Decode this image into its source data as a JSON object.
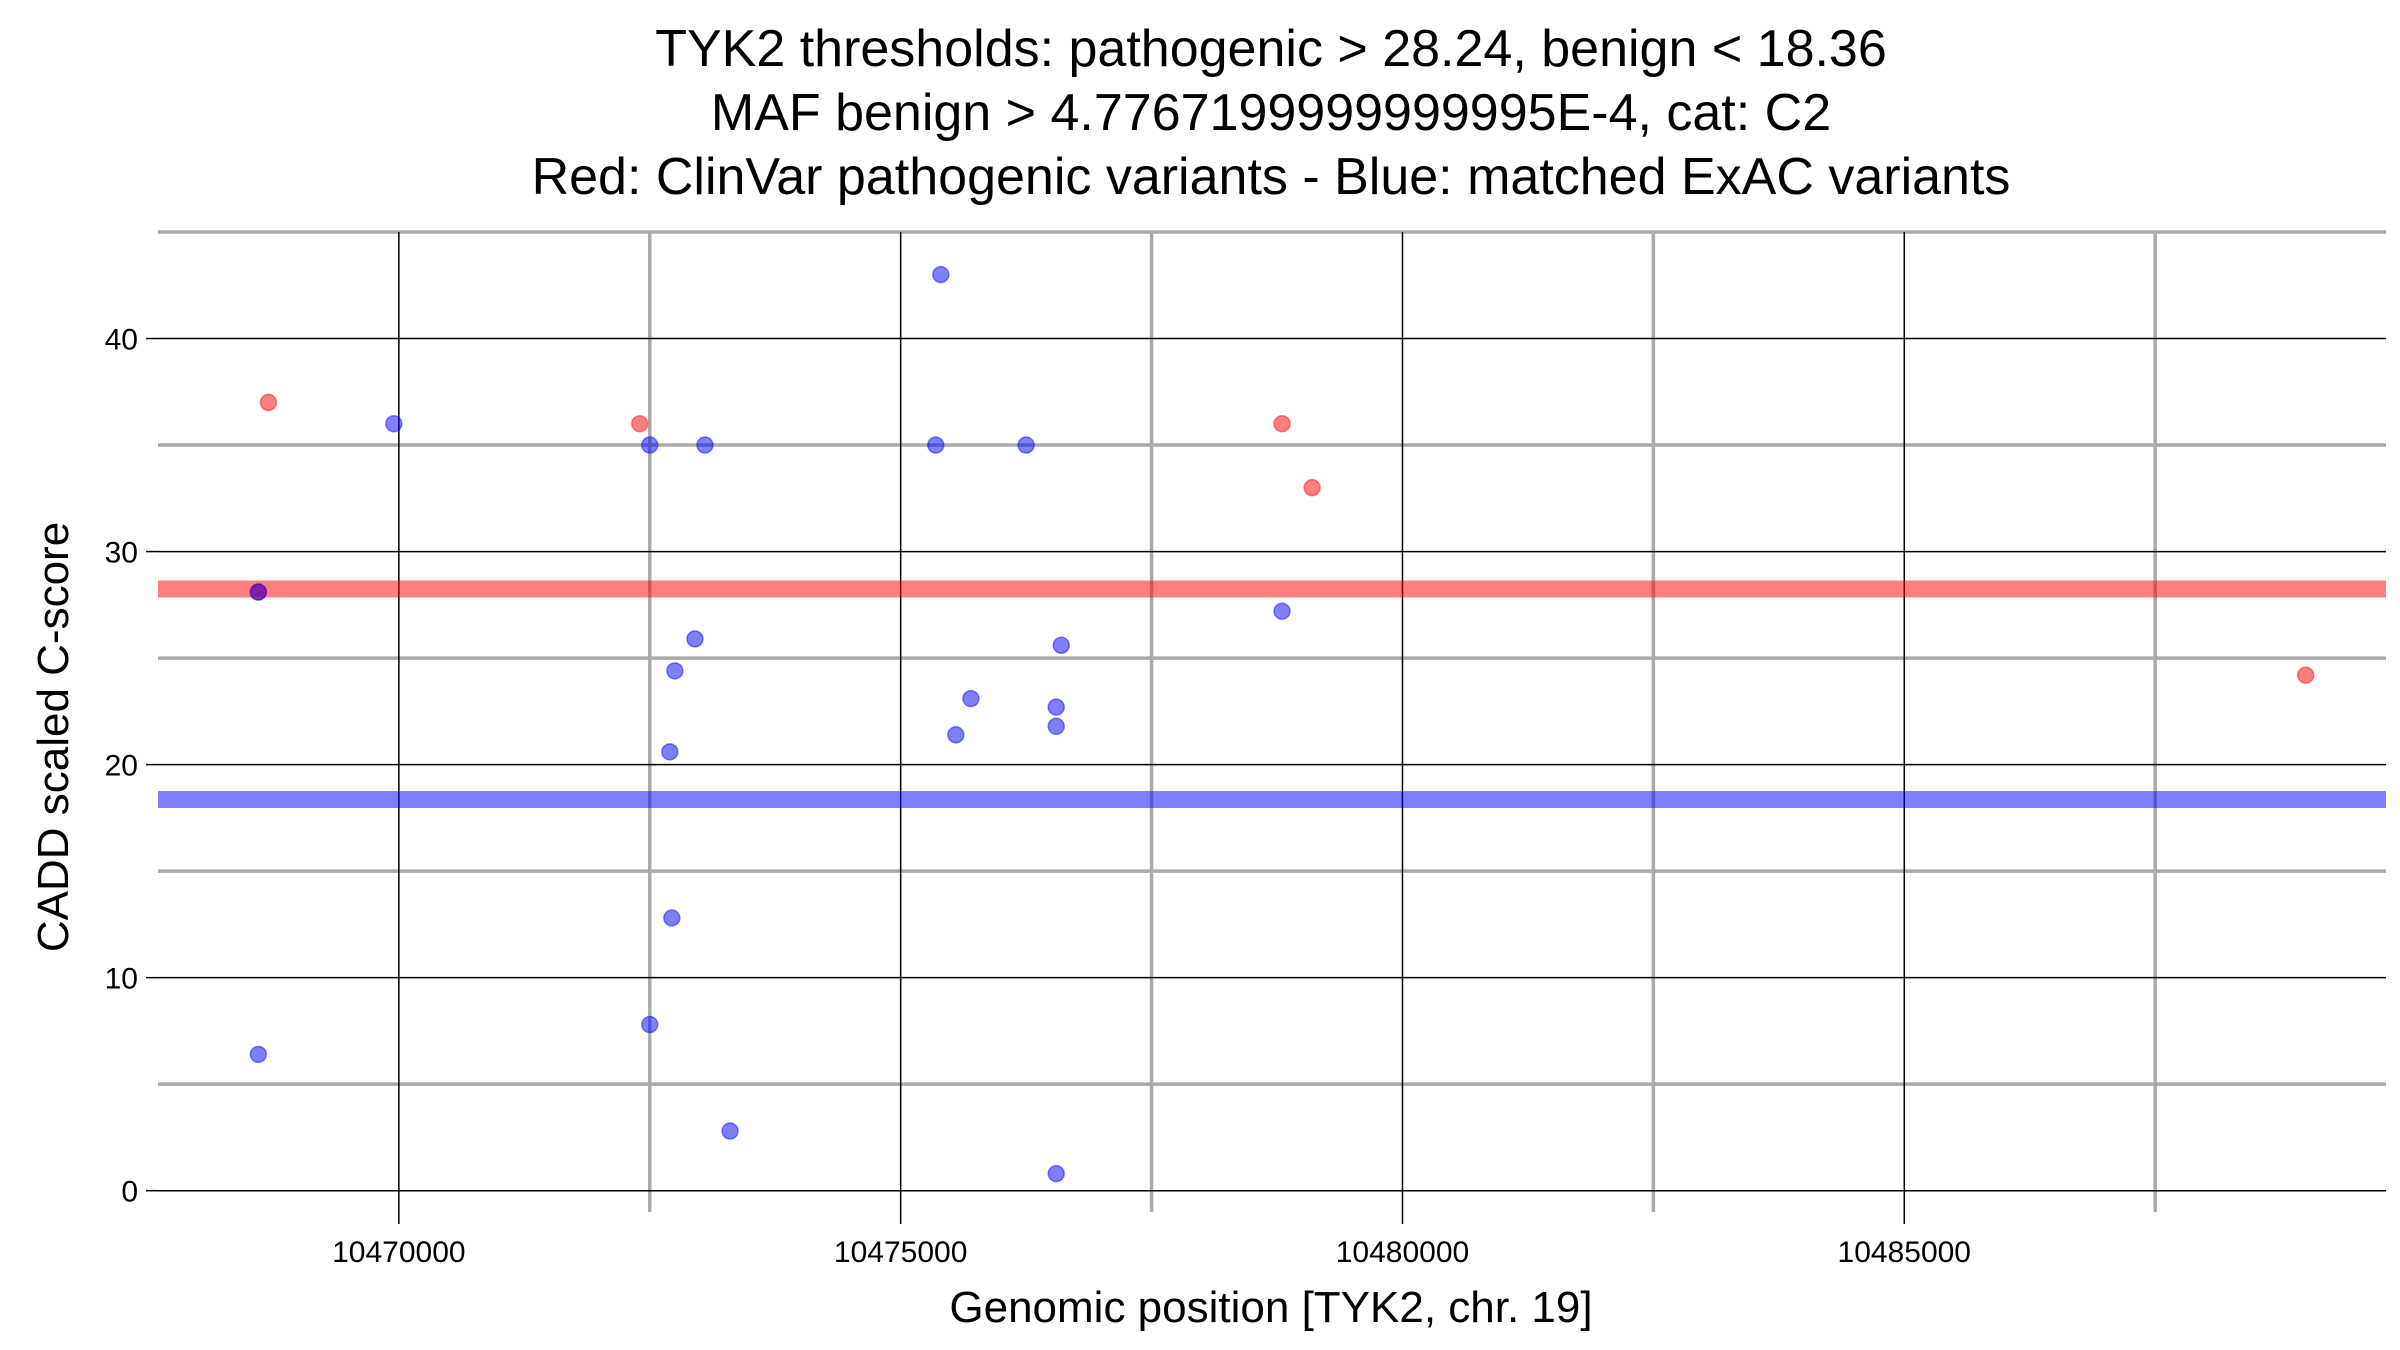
{
  "chart_data": {
    "type": "scatter",
    "title_lines": [
      "TYK2 thresholds: pathogenic > 28.24, benign < 18.36",
      "MAF benign > 4.7767199999999995E-4, cat: C2",
      "Red: ClinVar pathogenic variants - Blue: matched ExAC variants"
    ],
    "xlabel": "Genomic position [TYK2, chr. 19]",
    "ylabel": "CADD scaled C-score",
    "xlim": [
      10467600,
      10489800
    ],
    "ylim": [
      -1,
      45
    ],
    "x_major_ticks": [
      10470000,
      10475000,
      10480000,
      10485000
    ],
    "x_tick_labels": [
      "10470000",
      "10475000",
      "10480000",
      "10485000"
    ],
    "x_minor_gridlines": [
      10472500,
      10477500,
      10482500,
      10487500
    ],
    "y_major_ticks": [
      0,
      10,
      20,
      30,
      40
    ],
    "y_tick_labels": [
      "0",
      "10",
      "20",
      "30",
      "40"
    ],
    "y_minor_gridlines": [
      5,
      15,
      25,
      35,
      45
    ],
    "grid": true,
    "thresholds": [
      {
        "value": 28.24,
        "color": "#ff0000"
      },
      {
        "value": 18.36,
        "color": "#0000ff"
      }
    ],
    "colors": {
      "pathogenic": "#ff0000",
      "benign": "#0000ff"
    },
    "series": [
      {
        "color": "#ff0000",
        "points": [
          [
            10468700,
            37.0
          ],
          [
            10468600,
            28.1
          ],
          [
            10472400,
            36.0
          ],
          [
            10478800,
            36.0
          ],
          [
            10479100,
            33.0
          ],
          [
            10489000,
            24.2
          ]
        ]
      },
      {
        "color": "#0000ff",
        "points": [
          [
            10468600,
            28.1
          ],
          [
            10468600,
            6.4
          ],
          [
            10469950,
            36.0
          ],
          [
            10472500,
            35.0
          ],
          [
            10473050,
            35.0
          ],
          [
            10472950,
            25.9
          ],
          [
            10472750,
            24.4
          ],
          [
            10472700,
            20.6
          ],
          [
            10472720,
            12.8
          ],
          [
            10472500,
            7.8
          ],
          [
            10473300,
            2.8
          ],
          [
            10475400,
            43.0
          ],
          [
            10475350,
            35.0
          ],
          [
            10476250,
            35.0
          ],
          [
            10475700,
            23.1
          ],
          [
            10475550,
            21.4
          ],
          [
            10476550,
            22.7
          ],
          [
            10476550,
            21.8
          ],
          [
            10476600,
            25.6
          ],
          [
            10476550,
            0.8
          ],
          [
            10478800,
            27.2
          ]
        ]
      }
    ]
  }
}
